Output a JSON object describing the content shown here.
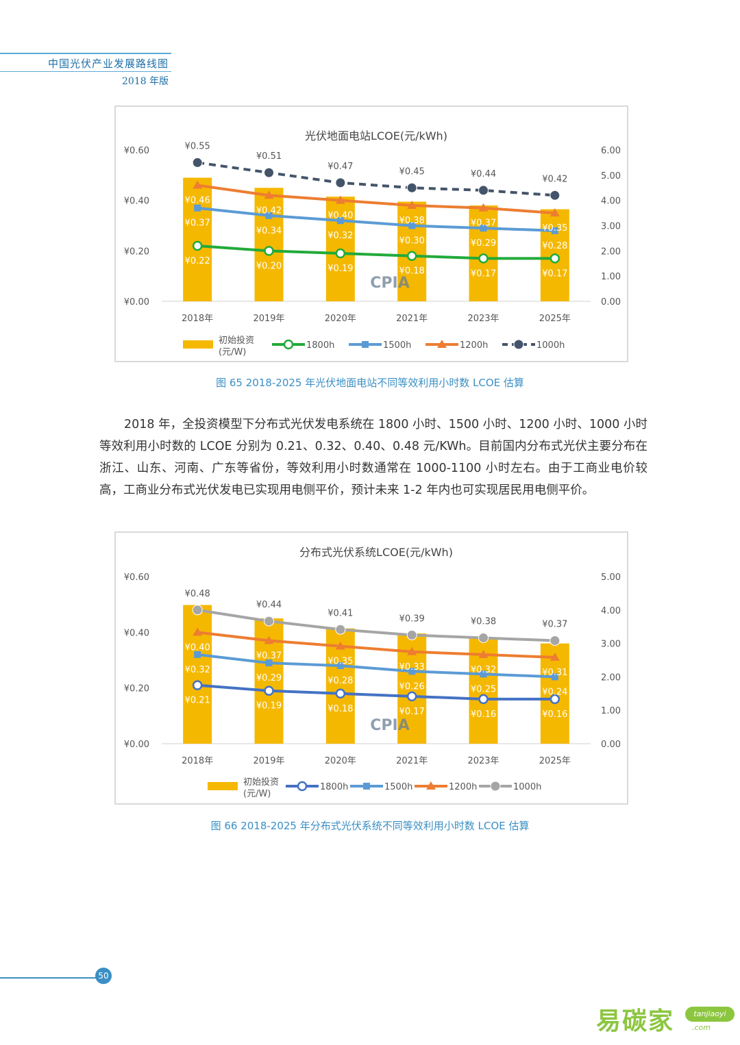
{
  "header": {
    "title": "中国光伏产业发展路线图",
    "edition": "2018 年版"
  },
  "figure1": {
    "caption": "图 65 2018-2025 年光伏地面电站不同等效利用小时数 LCOE 估算",
    "chart_data": {
      "type": "bar",
      "title": "光伏地面电站LCOE(元/kWh)",
      "categories": [
        "2018年",
        "2019年",
        "2020年",
        "2021年",
        "2023年",
        "2025年"
      ],
      "left_ticks": [
        "¥0.00",
        "¥0.20",
        "¥0.40",
        "¥0.60"
      ],
      "right_ticks": [
        "0.00",
        "1.00",
        "2.00",
        "3.00",
        "4.00",
        "5.00",
        "6.00"
      ],
      "ylim_left": [
        0,
        0.6
      ],
      "ylim_right": [
        0,
        6
      ],
      "bar_series": {
        "name": "初始投资(元/W)",
        "values": [
          4.9,
          4.5,
          4.15,
          3.95,
          3.8,
          3.65
        ],
        "color": "#f5b800"
      },
      "line_series": [
        {
          "name": "1800h",
          "values": [
            0.22,
            0.2,
            0.19,
            0.18,
            0.17,
            0.17
          ],
          "labels": [
            "¥0.22",
            "¥0.20",
            "¥0.19",
            "¥0.18",
            "¥0.17",
            "¥0.17"
          ],
          "color": "#22aa3a",
          "marker": "circle-open",
          "dashed": false
        },
        {
          "name": "1500h",
          "values": [
            0.37,
            0.34,
            0.32,
            0.3,
            0.29,
            0.28
          ],
          "labels": [
            "¥0.37",
            "¥0.34",
            "¥0.32",
            "¥0.30",
            "¥0.29",
            "¥0.28"
          ],
          "color": "#5b9bd5",
          "marker": "square",
          "dashed": false
        },
        {
          "name": "1200h",
          "values": [
            0.46,
            0.42,
            0.4,
            0.38,
            0.37,
            0.35
          ],
          "labels": [
            "¥0.46",
            "¥0.42",
            "¥0.40",
            "¥0.38",
            "¥0.37",
            "¥0.35"
          ],
          "color": "#ed7d31",
          "marker": "triangle",
          "dashed": false
        },
        {
          "name": "1000h",
          "values": [
            0.55,
            0.51,
            0.47,
            0.45,
            0.44,
            0.42
          ],
          "labels": [
            "¥0.55",
            "¥0.51",
            "¥0.47",
            "¥0.45",
            "¥0.44",
            "¥0.42"
          ],
          "color": "#44546a",
          "marker": "circle",
          "dashed": true
        }
      ],
      "legend": [
        "初始投资",
        "(元/W)",
        "1800h",
        "1500h",
        "1200h",
        "1000h"
      ],
      "watermark": "CPIA"
    }
  },
  "paragraph": "2018 年，全投资模型下分布式光伏发电系统在 1800 小时、1500 小时、1200 小时、1000 小时等效利用小时数的 LCOE 分别为 0.21、0.32、0.40、0.48 元/KWh。目前国内分布式光伏主要分布在浙江、山东、河南、广东等省份，等效利用小时数通常在 1000-1100 小时左右。由于工商业电价较高，工商业分布式光伏发电已实现用电侧平价，预计未来 1-2 年内也可实现居民用电侧平价。",
  "figure2": {
    "caption": "图 66 2018-2025 年分布式光伏系统不同等效利用小时数 LCOE 估算",
    "chart_data": {
      "type": "bar",
      "title": "分布式光伏系统LCOE(元/kWh)",
      "categories": [
        "2018年",
        "2019年",
        "2020年",
        "2021年",
        "2023年",
        "2025年"
      ],
      "left_ticks": [
        "¥0.00",
        "¥0.20",
        "¥0.40",
        "¥0.60"
      ],
      "right_ticks": [
        "0.00",
        "1.00",
        "2.00",
        "3.00",
        "4.00",
        "5.00"
      ],
      "ylim_left": [
        0,
        0.6
      ],
      "ylim_right": [
        0,
        5
      ],
      "bar_series": {
        "name": "初始投资(元/W)",
        "values": [
          4.15,
          3.75,
          3.45,
          3.3,
          3.15,
          3.0
        ],
        "color": "#f5b800"
      },
      "line_series": [
        {
          "name": "1800h",
          "values": [
            0.21,
            0.19,
            0.18,
            0.17,
            0.16,
            0.16
          ],
          "labels": [
            "¥0.21",
            "¥0.19",
            "¥0.18",
            "¥0.17",
            "¥0.16",
            "¥0.16"
          ],
          "color": "#4472c4",
          "marker": "circle-open",
          "dashed": false
        },
        {
          "name": "1500h",
          "values": [
            0.32,
            0.29,
            0.28,
            0.26,
            0.25,
            0.24
          ],
          "labels": [
            "¥0.32",
            "¥0.29",
            "¥0.28",
            "¥0.26",
            "¥0.25",
            "¥0.24"
          ],
          "color": "#5b9bd5",
          "marker": "square",
          "dashed": false
        },
        {
          "name": "1200h",
          "values": [
            0.4,
            0.37,
            0.35,
            0.33,
            0.32,
            0.31
          ],
          "labels": [
            "¥0.40",
            "¥0.37",
            "¥0.35",
            "¥0.33",
            "¥0.32",
            "¥0.31"
          ],
          "color": "#ed7d31",
          "marker": "triangle",
          "dashed": false
        },
        {
          "name": "1000h",
          "values": [
            0.48,
            0.44,
            0.41,
            0.39,
            0.38,
            0.37
          ],
          "labels": [
            "¥0.48",
            "¥0.44",
            "¥0.41",
            "¥0.39",
            "¥0.38",
            "¥0.37"
          ],
          "color": "#a5a5a5",
          "marker": "circle",
          "dashed": false
        }
      ],
      "legend": [
        "初始投资",
        "(元/W)",
        "1800h",
        "1500h",
        "1200h",
        "1000h"
      ],
      "watermark": "CPIA"
    }
  },
  "footer": {
    "page_number": "50"
  },
  "watermark": {
    "brand": "易碳家",
    "url": "tanjiaoyi",
    "domain": ".com"
  }
}
